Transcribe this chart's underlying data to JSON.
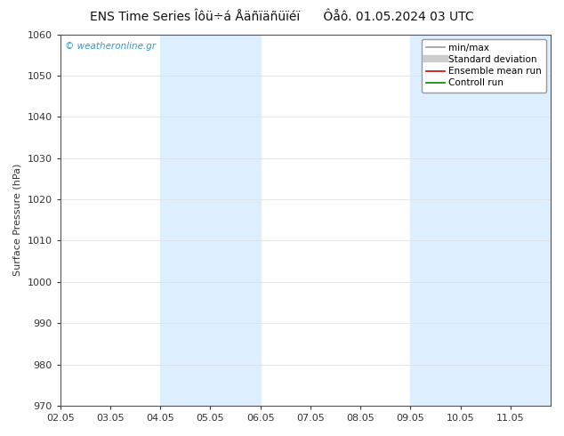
{
  "title": "ENS Time Series Îôü÷á Åäñïäñüïéï",
  "title_right": "Ôåô. 01.05.2024 03 UTC",
  "ylabel": "Surface Pressure (hPa)",
  "ylim": [
    970,
    1060
  ],
  "yticks": [
    970,
    980,
    990,
    1000,
    1010,
    1020,
    1030,
    1040,
    1050,
    1060
  ],
  "xtick_labels": [
    "02.05",
    "03.05",
    "04.05",
    "05.05",
    "06.05",
    "07.05",
    "08.05",
    "09.05",
    "10.05",
    "11.05"
  ],
  "xtick_positions": [
    0,
    1,
    2,
    3,
    4,
    5,
    6,
    7,
    8,
    9
  ],
  "xlim": [
    0,
    9.8
  ],
  "shaded_bands": [
    {
      "xstart": 2,
      "xend": 4,
      "color": "#ddeeff"
    },
    {
      "xstart": 7,
      "xend": 9.8,
      "color": "#ddeeff"
    }
  ],
  "legend_entries": [
    {
      "label": "min/max",
      "color": "#999999",
      "lw": 1.2
    },
    {
      "label": "Standard deviation",
      "color": "#cccccc",
      "lw": 6
    },
    {
      "label": "Ensemble mean run",
      "color": "#cc0000",
      "lw": 1.2
    },
    {
      "label": "Controll run",
      "color": "#008800",
      "lw": 1.2
    }
  ],
  "watermark": "© weatheronline.gr",
  "bg_color": "#ffffff",
  "plot_bg_color": "#ffffff",
  "title_fontsize": 10,
  "axis_fontsize": 8,
  "tick_fontsize": 8,
  "legend_fontsize": 7.5
}
